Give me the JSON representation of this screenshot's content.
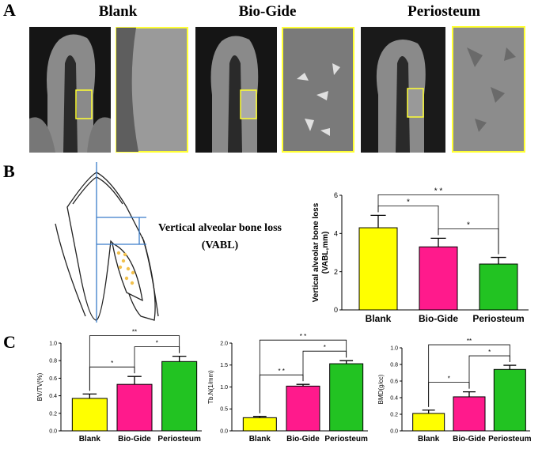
{
  "panels": {
    "A": {
      "label": "A",
      "groups": [
        "Blank",
        "Bio-Gide",
        "Periosteum"
      ]
    },
    "B": {
      "label": "B",
      "diagram": {
        "line1": "Vertical alveolar bone loss",
        "line2": "(VABL)"
      }
    },
    "C": {
      "label": "C"
    }
  },
  "chart_data": [
    {
      "type": "bar",
      "categories": [
        "Blank",
        "Bio-Gide",
        "Periosteum"
      ],
      "values": [
        4.3,
        3.3,
        2.4
      ],
      "errors": [
        0.65,
        0.45,
        0.35
      ],
      "colors": [
        "#ffff00",
        "#ff1a8c",
        "#22c322"
      ],
      "ylabel": [
        "Vertical alveolar bone loss",
        "(VABL,mm)"
      ],
      "ylim": [
        0,
        6
      ],
      "yticks": [
        0,
        2,
        4,
        6
      ],
      "significance": [
        {
          "from": 0,
          "to": 1,
          "label": "*"
        },
        {
          "from": 1,
          "to": 2,
          "label": "*"
        },
        {
          "from": 0,
          "to": 2,
          "label": "* *"
        }
      ]
    },
    {
      "type": "bar",
      "categories": [
        "Blank",
        "Bio-Gide",
        "Periosteum"
      ],
      "values": [
        0.37,
        0.53,
        0.79
      ],
      "errors": [
        0.05,
        0.09,
        0.06
      ],
      "colors": [
        "#ffff00",
        "#ff1a8c",
        "#22c322"
      ],
      "ylabel": "BV/TV(%)",
      "ylim": [
        0,
        1.0
      ],
      "yticks": [
        {
          "value": 0,
          "label": "0.0"
        },
        0.2,
        0.4,
        0.6,
        0.8,
        {
          "value": 1,
          "label": "1.0"
        }
      ],
      "significance": [
        {
          "from": 0,
          "to": 1,
          "label": "*"
        },
        {
          "from": 1,
          "to": 2,
          "label": "*"
        },
        {
          "from": 0,
          "to": 2,
          "label": "**"
        }
      ]
    },
    {
      "type": "bar",
      "categories": [
        "Blank",
        "Bio-Gide",
        "Periosteum"
      ],
      "values": [
        0.3,
        1.02,
        1.53
      ],
      "errors": [
        0.03,
        0.04,
        0.07
      ],
      "colors": [
        "#ffff00",
        "#ff1a8c",
        "#22c322"
      ],
      "ylabel": "Tb.N(1/mm)",
      "ylim": [
        0,
        2.0
      ],
      "yticks": [
        {
          "value": 0,
          "label": "0.0"
        },
        0.5,
        {
          "value": 1,
          "label": "1.0"
        },
        1.5,
        {
          "value": 2,
          "label": "2.0"
        }
      ],
      "significance": [
        {
          "from": 0,
          "to": 1,
          "label": "* *"
        },
        {
          "from": 1,
          "to": 2,
          "label": "*"
        },
        {
          "from": 0,
          "to": 2,
          "label": "* *"
        }
      ]
    },
    {
      "type": "bar",
      "categories": [
        "Blank",
        "Bio-Gide",
        "Periosteum"
      ],
      "values": [
        0.21,
        0.41,
        0.74
      ],
      "errors": [
        0.04,
        0.06,
        0.05
      ],
      "colors": [
        "#ffff00",
        "#ff1a8c",
        "#22c322"
      ],
      "ylabel": "BMD(g/cc)",
      "ylim": [
        0,
        1.0
      ],
      "yticks": [
        {
          "value": 0,
          "label": "0.0"
        },
        0.2,
        0.4,
        0.6,
        0.8,
        {
          "value": 1,
          "label": "1.0"
        }
      ],
      "significance": [
        {
          "from": 0,
          "to": 1,
          "label": "*"
        },
        {
          "from": 1,
          "to": 2,
          "label": "*"
        },
        {
          "from": 0,
          "to": 2,
          "label": "**"
        }
      ]
    }
  ]
}
